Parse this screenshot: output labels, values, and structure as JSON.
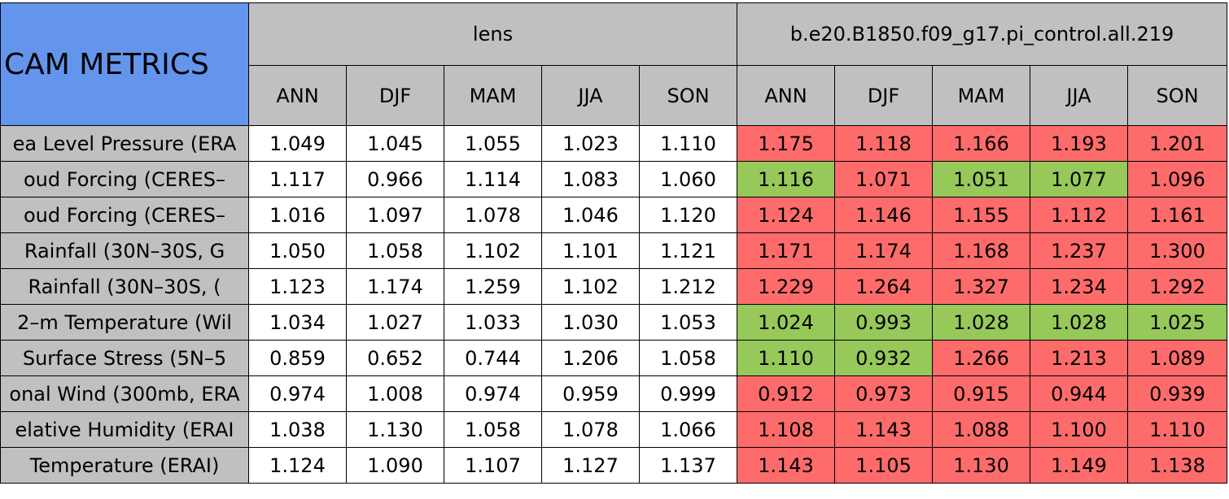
{
  "table": {
    "title": "CAM METRICS",
    "groups": [
      {
        "name": "lens",
        "columns": [
          "ANN",
          "DJF",
          "MAM",
          "JJA",
          "SON"
        ]
      },
      {
        "name": "b.e20.B1850.f09_g17.pi_control.all.219",
        "columns": [
          "ANN",
          "DJF",
          "MAM",
          "JJA",
          "SON"
        ]
      }
    ],
    "colors": {
      "title": "#6495ed",
      "header": "#c0c0c0",
      "label": "#c0c0c0",
      "plain": "#ffffff",
      "worse": "#fe6b6b",
      "better": "#96c85a"
    },
    "rows": [
      {
        "label": "ea Level Pressure (ERA",
        "cells": [
          "1.049",
          "1.045",
          "1.055",
          "1.023",
          "1.110",
          "1.175",
          "1.118",
          "1.166",
          "1.193",
          "1.201"
        ],
        "fills": [
          "plain",
          "plain",
          "plain",
          "plain",
          "plain",
          "worse",
          "worse",
          "worse",
          "worse",
          "worse"
        ]
      },
      {
        "label": "oud Forcing (CERES–",
        "cells": [
          "1.117",
          "0.966",
          "1.114",
          "1.083",
          "1.060",
          "1.116",
          "1.071",
          "1.051",
          "1.077",
          "1.096"
        ],
        "fills": [
          "plain",
          "plain",
          "plain",
          "plain",
          "plain",
          "better",
          "worse",
          "better",
          "better",
          "worse"
        ]
      },
      {
        "label": "oud Forcing (CERES–",
        "cells": [
          "1.016",
          "1.097",
          "1.078",
          "1.046",
          "1.120",
          "1.124",
          "1.146",
          "1.155",
          "1.112",
          "1.161"
        ],
        "fills": [
          "plain",
          "plain",
          "plain",
          "plain",
          "plain",
          "worse",
          "worse",
          "worse",
          "worse",
          "worse"
        ]
      },
      {
        "label": "Rainfall (30N–30S, G",
        "cells": [
          "1.050",
          "1.058",
          "1.102",
          "1.101",
          "1.121",
          "1.171",
          "1.174",
          "1.168",
          "1.237",
          "1.300"
        ],
        "fills": [
          "plain",
          "plain",
          "plain",
          "plain",
          "plain",
          "worse",
          "worse",
          "worse",
          "worse",
          "worse"
        ]
      },
      {
        "label": "Rainfall (30N–30S, (",
        "cells": [
          "1.123",
          "1.174",
          "1.259",
          "1.102",
          "1.212",
          "1.229",
          "1.264",
          "1.327",
          "1.234",
          "1.292"
        ],
        "fills": [
          "plain",
          "plain",
          "plain",
          "plain",
          "plain",
          "worse",
          "worse",
          "worse",
          "worse",
          "worse"
        ]
      },
      {
        "label": "2–m Temperature (Wil",
        "cells": [
          "1.034",
          "1.027",
          "1.033",
          "1.030",
          "1.053",
          "1.024",
          "0.993",
          "1.028",
          "1.028",
          "1.025"
        ],
        "fills": [
          "plain",
          "plain",
          "plain",
          "plain",
          "plain",
          "better",
          "better",
          "better",
          "better",
          "better"
        ]
      },
      {
        "label": "Surface Stress (5N–5",
        "cells": [
          "0.859",
          "0.652",
          "0.744",
          "1.206",
          "1.058",
          "1.110",
          "0.932",
          "1.266",
          "1.213",
          "1.089"
        ],
        "fills": [
          "plain",
          "plain",
          "plain",
          "plain",
          "plain",
          "better",
          "better",
          "worse",
          "worse",
          "worse"
        ]
      },
      {
        "label": "onal Wind (300mb, ERA",
        "cells": [
          "0.974",
          "1.008",
          "0.974",
          "0.959",
          "0.999",
          "0.912",
          "0.973",
          "0.915",
          "0.944",
          "0.939"
        ],
        "fills": [
          "plain",
          "plain",
          "plain",
          "plain",
          "plain",
          "worse",
          "worse",
          "worse",
          "worse",
          "worse"
        ]
      },
      {
        "label": "elative Humidity (ERAI",
        "cells": [
          "1.038",
          "1.130",
          "1.058",
          "1.078",
          "1.066",
          "1.108",
          "1.143",
          "1.088",
          "1.100",
          "1.110"
        ],
        "fills": [
          "plain",
          "plain",
          "plain",
          "plain",
          "plain",
          "worse",
          "worse",
          "worse",
          "worse",
          "worse"
        ]
      },
      {
        "label": "Temperature (ERAI)",
        "cells": [
          "1.124",
          "1.090",
          "1.107",
          "1.127",
          "1.137",
          "1.143",
          "1.105",
          "1.130",
          "1.149",
          "1.138"
        ],
        "fills": [
          "plain",
          "plain",
          "plain",
          "plain",
          "plain",
          "worse",
          "worse",
          "worse",
          "worse",
          "worse"
        ]
      }
    ]
  }
}
